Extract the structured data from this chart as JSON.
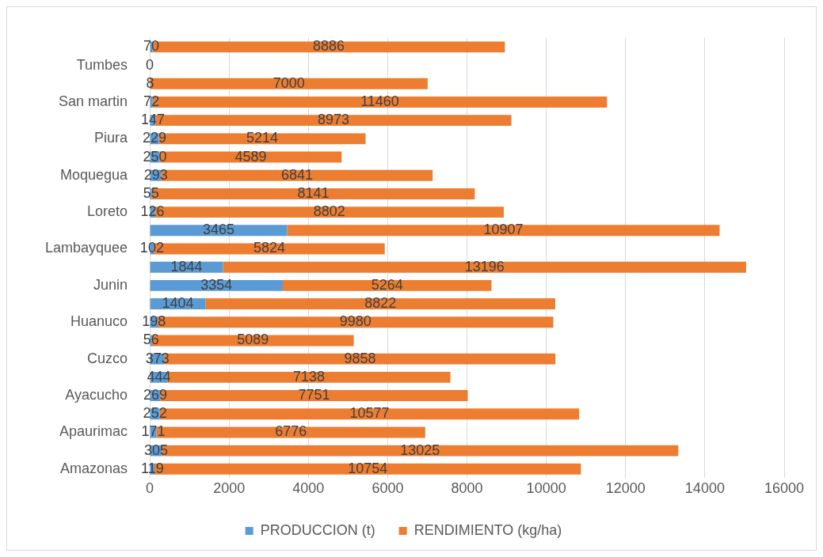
{
  "chart_data": {
    "type": "bar",
    "orientation": "horizontal",
    "stacked": true,
    "categories": [
      null,
      "Tumbes",
      null,
      "San martin",
      null,
      "Piura",
      null,
      "Moquegua",
      null,
      "Loreto",
      null,
      "Lambayquee",
      null,
      "Junin",
      null,
      "Huanuco",
      null,
      "Cuzco",
      null,
      "Ayacucho",
      null,
      "Apaurimac",
      null,
      "Amazonas"
    ],
    "series": [
      {
        "name": "PRODUCCION (t)",
        "color": "#5b9bd5",
        "values": [
          70,
          0,
          8,
          72,
          147,
          229,
          250,
          293,
          55,
          126,
          3465,
          102,
          1844,
          3354,
          1404,
          198,
          56,
          373,
          444,
          269,
          252,
          171,
          305,
          119
        ]
      },
      {
        "name": "RENDIMIENTO (kg/ha)",
        "color": "#ed7d31",
        "values": [
          8886,
          null,
          7000,
          11460,
          8973,
          5214,
          4589,
          6841,
          8141,
          8802,
          10907,
          5824,
          13196,
          5264,
          8822,
          9980,
          5089,
          9858,
          7138,
          7751,
          10577,
          6776,
          13025,
          10754
        ]
      }
    ],
    "xlim": [
      0,
      16000
    ],
    "xticks": [
      0,
      2000,
      4000,
      6000,
      8000,
      10000,
      12000,
      14000,
      16000
    ],
    "grid": "x",
    "legend": "bottom",
    "data_labels": true
  }
}
